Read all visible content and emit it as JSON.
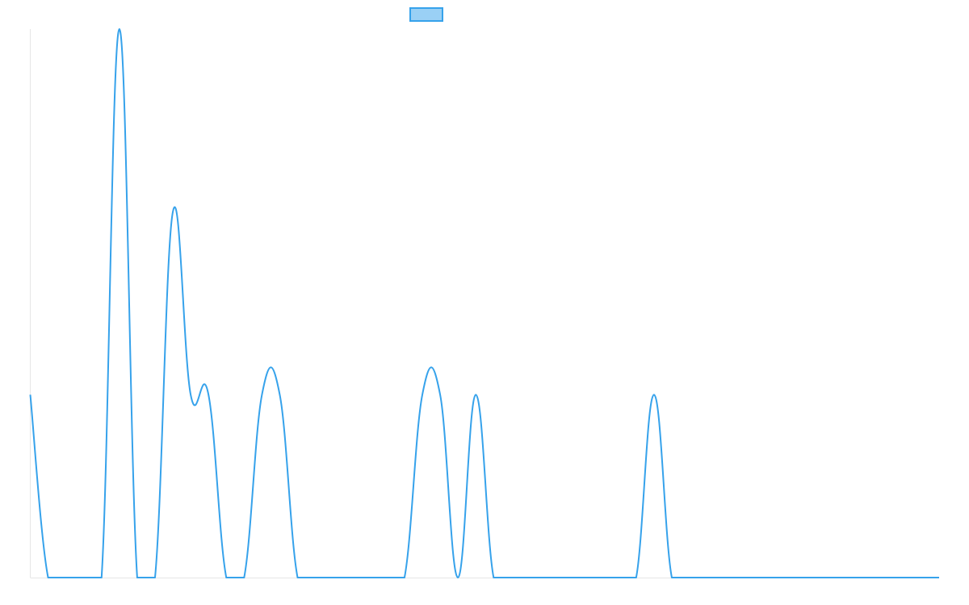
{
  "chart_data": {
    "type": "line",
    "title": "",
    "xlabel": "",
    "ylabel": "",
    "legend": {
      "position": "top",
      "entries": [
        {
          "label": ""
        }
      ]
    },
    "grid": false,
    "ylim": [
      0,
      3
    ],
    "x": [
      0,
      1,
      2,
      3,
      4,
      5,
      6,
      7,
      8,
      9,
      10,
      11,
      12,
      13,
      14,
      15,
      16,
      17,
      18,
      19,
      20,
      21,
      22,
      23,
      24,
      25,
      26,
      27,
      28,
      29,
      30,
      31,
      32,
      33,
      34,
      35,
      36,
      37,
      38,
      39,
      40,
      41,
      42,
      43,
      44,
      45,
      46,
      47,
      48,
      49,
      50,
      51
    ],
    "series": [
      {
        "color": "#36a2eb",
        "fill": "#9ad0f5",
        "values": [
          1,
          0,
          0,
          0,
          0,
          3,
          0,
          0,
          2,
          1,
          1,
          0,
          0,
          1,
          1,
          0,
          0,
          0,
          0,
          0,
          0,
          0,
          1,
          1,
          0,
          1,
          0,
          0,
          0,
          0,
          0,
          0,
          0,
          0,
          0,
          1,
          0,
          0,
          0,
          0,
          0,
          0,
          0,
          0,
          0,
          0,
          0,
          0,
          0,
          0,
          0,
          0
        ]
      }
    ]
  }
}
